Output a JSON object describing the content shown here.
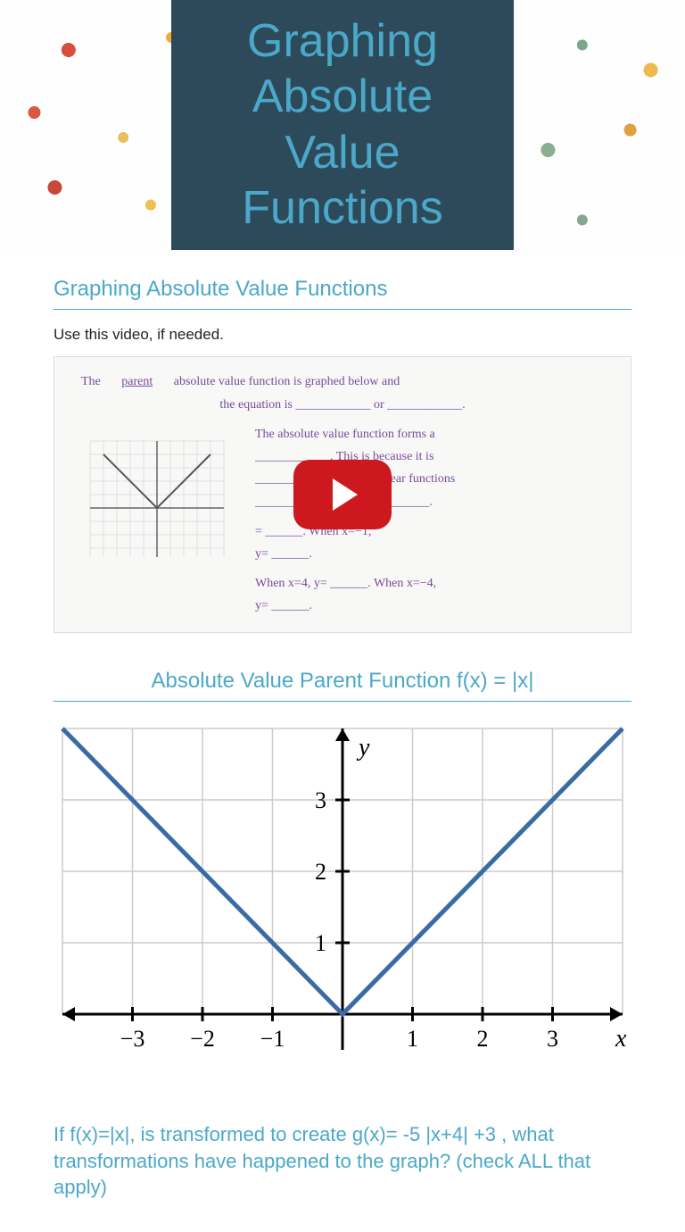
{
  "hero": {
    "title": "Graphing Absolute Value Functions",
    "title_color": "#4ba8c9",
    "box_bg": "#2d4a5a",
    "pattern_colors": [
      "#d94e3a",
      "#f4a83c",
      "#8fb89a",
      "#e8c85a",
      "#c94a3a"
    ]
  },
  "section1": {
    "title": "Graphing Absolute Value Functions",
    "instruction": "Use this video, if needed."
  },
  "video": {
    "line1_prefix": "The",
    "line1_blank": "parent",
    "line1_suffix": "absolute value function is graphed below and",
    "line2": "the equation is ____________ or ____________.",
    "right_text1": "The absolute value function forms a",
    "right_text2": "____________. This is because it is",
    "right_text3": "____________ separate linear functions",
    "right_text4": "____________ and ____________.",
    "right_text5": "= ______. When  x=−1,",
    "right_text6": "y= ______.",
    "right_text7": "When  x=4,  y= ______.  When  x=−4,",
    "right_text8": "y= ______.",
    "play_bg": "#cc181e"
  },
  "section2": {
    "title": "Absolute Value Parent Function   f(x) = |x|"
  },
  "chart": {
    "type": "line",
    "xlabel": "x",
    "ylabel": "y",
    "xlim": [
      -4,
      4
    ],
    "ylim": [
      -0.5,
      4
    ],
    "xticks": [
      -3,
      -2,
      -1,
      1,
      2,
      3
    ],
    "yticks": [
      1,
      2,
      3
    ],
    "xtick_labels": [
      "−3",
      "−2",
      "−1",
      "1",
      "2",
      "3"
    ],
    "ytick_labels": [
      "1",
      "2",
      "3"
    ],
    "line_points": [
      [
        -4,
        4
      ],
      [
        0,
        0
      ],
      [
        4,
        4
      ]
    ],
    "line_color": "#3a6ba5",
    "line_width": 5,
    "axis_color": "#000000",
    "axis_width": 3,
    "grid_color": "#cccccc",
    "grid_width": 1.5,
    "background": "#ffffff",
    "label_fontsize": 28,
    "tick_fontsize": 26,
    "tick_mark_length": 8
  },
  "question": {
    "text": "If f(x)=|x|, is transformed to create g(x)= -5 |x+4| +3 , what transformations have happened to the graph? (check ALL that apply)"
  }
}
